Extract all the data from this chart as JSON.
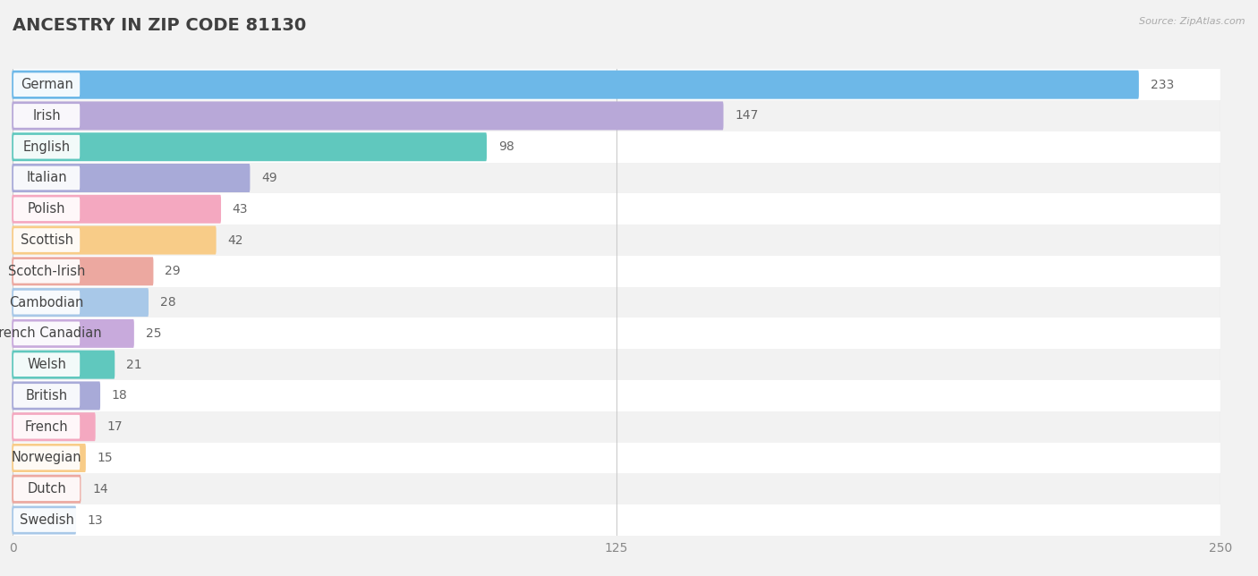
{
  "title": "ANCESTRY IN ZIP CODE 81130",
  "source": "Source: ZipAtlas.com",
  "categories": [
    "German",
    "Irish",
    "English",
    "Italian",
    "Polish",
    "Scottish",
    "Scotch-Irish",
    "Cambodian",
    "French Canadian",
    "Welsh",
    "British",
    "French",
    "Norwegian",
    "Dutch",
    "Swedish"
  ],
  "values": [
    233,
    147,
    98,
    49,
    43,
    42,
    29,
    28,
    25,
    21,
    18,
    17,
    15,
    14,
    13
  ],
  "bar_colors": [
    "#6db8e8",
    "#b8a8d8",
    "#60c8be",
    "#a8aad8",
    "#f4a8c0",
    "#f8cc88",
    "#eca8a0",
    "#a8c8e8",
    "#c8aadc",
    "#60c8be",
    "#a8aad8",
    "#f4a8c0",
    "#f8cc88",
    "#eca8a0",
    "#a8c8e8"
  ],
  "xlim": [
    0,
    250
  ],
  "xticks": [
    0,
    125,
    250
  ],
  "background_color": "#f2f2f2",
  "row_bg_colors": [
    "#ffffff",
    "#f2f2f2"
  ],
  "title_fontsize": 14,
  "label_fontsize": 10.5,
  "value_fontsize": 10,
  "bar_height": 0.62
}
